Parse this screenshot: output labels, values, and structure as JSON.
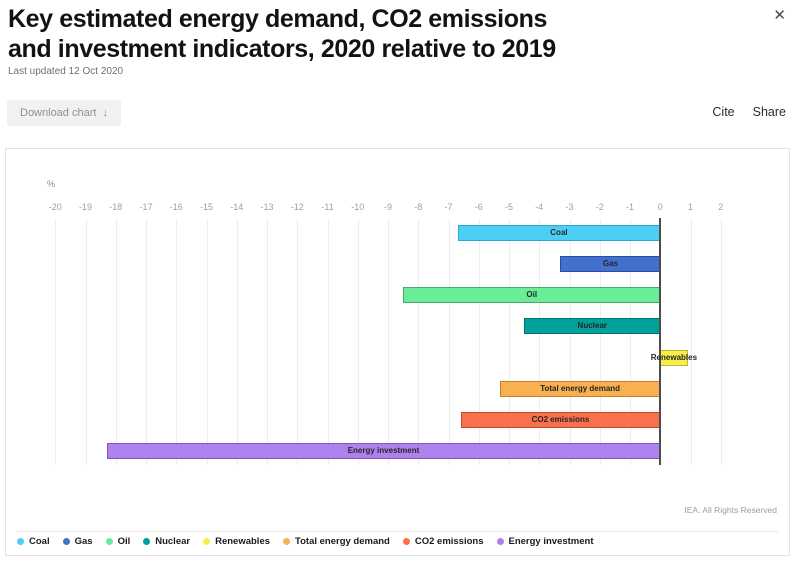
{
  "header": {
    "title_line1": "Key estimated energy demand, CO2 emissions",
    "title_line2": "and investment indicators, 2020 relative to 2019",
    "last_updated": "Last updated 12 Oct 2020",
    "close_icon": "✕"
  },
  "toolbar": {
    "download_label": "Download chart",
    "download_icon": "↓",
    "cite_label": "Cite",
    "share_label": "Share"
  },
  "chart": {
    "unit_label": "%",
    "credit": "IEA. All Rights Reserved"
  },
  "chart_data": {
    "type": "bar",
    "orientation": "horizontal",
    "title": "Key estimated energy demand, CO2 emissions and investment indicators, 2020 relative to 2019",
    "xlabel": "%",
    "categories": [
      "Coal",
      "Gas",
      "Oil",
      "Nuclear",
      "Renewables",
      "Total energy demand",
      "CO2 emissions",
      "Energy investment"
    ],
    "values": [
      -6.7,
      -3.3,
      -8.5,
      -4.5,
      0.9,
      -5.3,
      -6.6,
      -18.3
    ],
    "colors": [
      "#4CCFF4",
      "#4170CE",
      "#69EE96",
      "#00A09B",
      "#F9EE49",
      "#F9B04E",
      "#F8704D",
      "#AF81EC"
    ],
    "border_colors": [
      "#2FA6CB",
      "#2A4F9F",
      "#46A96C",
      "#007472",
      "#BFB534",
      "#C1802B",
      "#C14B2E",
      "#8159BE"
    ],
    "xlim": [
      -20.5,
      2.5
    ],
    "ticks": {
      "min": -20,
      "max": 2,
      "step": 1
    },
    "grid": true,
    "legend_position": "bottom"
  }
}
